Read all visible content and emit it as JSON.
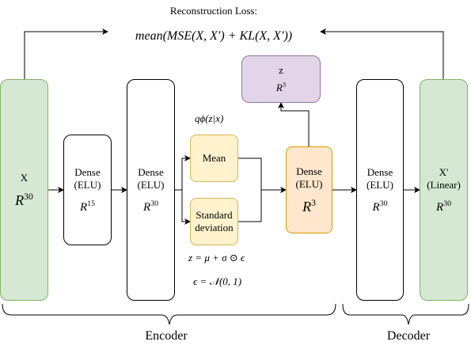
{
  "title": "Reconstruction Loss:",
  "loss_formula": "mean(MSE(X, X′) + KL(X, X′))",
  "colors": {
    "green_fill": "#d5e8d4",
    "green_stroke": "#82b366",
    "yellow_fill": "#fff2cc",
    "yellow_stroke": "#d6b656",
    "orange_fill": "#ffe6cc",
    "orange_stroke": "#d79b00",
    "purple_fill": "#e1d5e7",
    "purple_stroke": "#9673a6"
  },
  "nodes": {
    "input": {
      "label": "X",
      "dim_base": "R",
      "dim_exp": "30"
    },
    "enc1": {
      "line1": "Dense",
      "line2": "(ELU)",
      "dim_base": "R",
      "dim_exp": "15"
    },
    "enc2": {
      "line1": "Dense",
      "line2": "(ELU)",
      "dim_base": "R",
      "dim_exp": "30"
    },
    "mean": {
      "label": "Mean"
    },
    "std": {
      "line1": "Standard",
      "line2": "deviation"
    },
    "latent_dense": {
      "line1": "Dense",
      "line2": "(ELU)",
      "dim_base": "R",
      "dim_exp": "3"
    },
    "z": {
      "label": "z",
      "dim_base": "R",
      "dim_exp": "3"
    },
    "dec1": {
      "line1": "Dense",
      "line2": "(ELU)",
      "dim_base": "R",
      "dim_exp": "30"
    },
    "output": {
      "line1": "X'",
      "line2": "(Linear)",
      "dim_base": "R",
      "dim_exp": "30"
    }
  },
  "annotations": {
    "q_phi": "qϕ(z|x)",
    "reparam": "z = μ + σ ⊙ ϵ",
    "epsilon": "ϵ = 𝒩(0, 1)"
  },
  "groups": {
    "encoder": "Encoder",
    "decoder": "Decoder"
  }
}
